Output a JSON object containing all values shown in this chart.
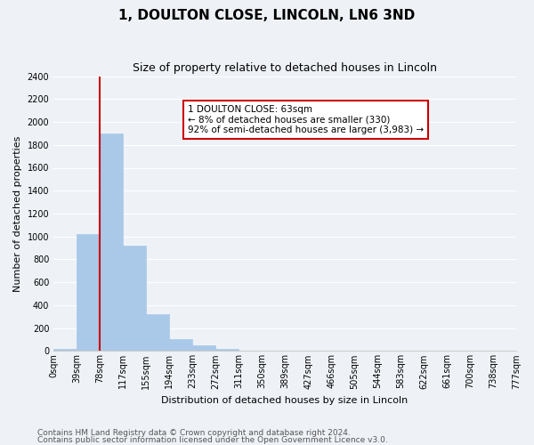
{
  "title": "1, DOULTON CLOSE, LINCOLN, LN6 3ND",
  "subtitle": "Size of property relative to detached houses in Lincoln",
  "xlabel": "Distribution of detached houses by size in Lincoln",
  "ylabel": "Number of detached properties",
  "bar_values": [
    20,
    1020,
    1900,
    920,
    320,
    105,
    50,
    20,
    0,
    0,
    0,
    0,
    0,
    0,
    0,
    0,
    0,
    0,
    0,
    0
  ],
  "bin_labels": [
    "0sqm",
    "39sqm",
    "78sqm",
    "117sqm",
    "155sqm",
    "194sqm",
    "233sqm",
    "272sqm",
    "311sqm",
    "350sqm",
    "389sqm",
    "427sqm",
    "466sqm",
    "505sqm",
    "544sqm",
    "583sqm",
    "622sqm",
    "661sqm",
    "700sqm",
    "738sqm",
    "777sqm"
  ],
  "bar_color": "#aac8e8",
  "bar_edge_color": "#aac8e8",
  "vline_color": "#cc0000",
  "vline_x_index": 2,
  "ylim": [
    0,
    2400
  ],
  "yticks": [
    0,
    200,
    400,
    600,
    800,
    1000,
    1200,
    1400,
    1600,
    1800,
    2000,
    2200,
    2400
  ],
  "annotation_title": "1 DOULTON CLOSE: 63sqm",
  "annotation_line1": "← 8% of detached houses are smaller (330)",
  "annotation_line2": "92% of semi-detached houses are larger (3,983) →",
  "footer1": "Contains HM Land Registry data © Crown copyright and database right 2024.",
  "footer2": "Contains public sector information licensed under the Open Government Licence v3.0.",
  "background_color": "#eef2f7",
  "grid_color": "#ffffff",
  "title_fontsize": 11,
  "subtitle_fontsize": 9,
  "axis_label_fontsize": 8,
  "tick_fontsize": 7,
  "footer_fontsize": 6.5
}
